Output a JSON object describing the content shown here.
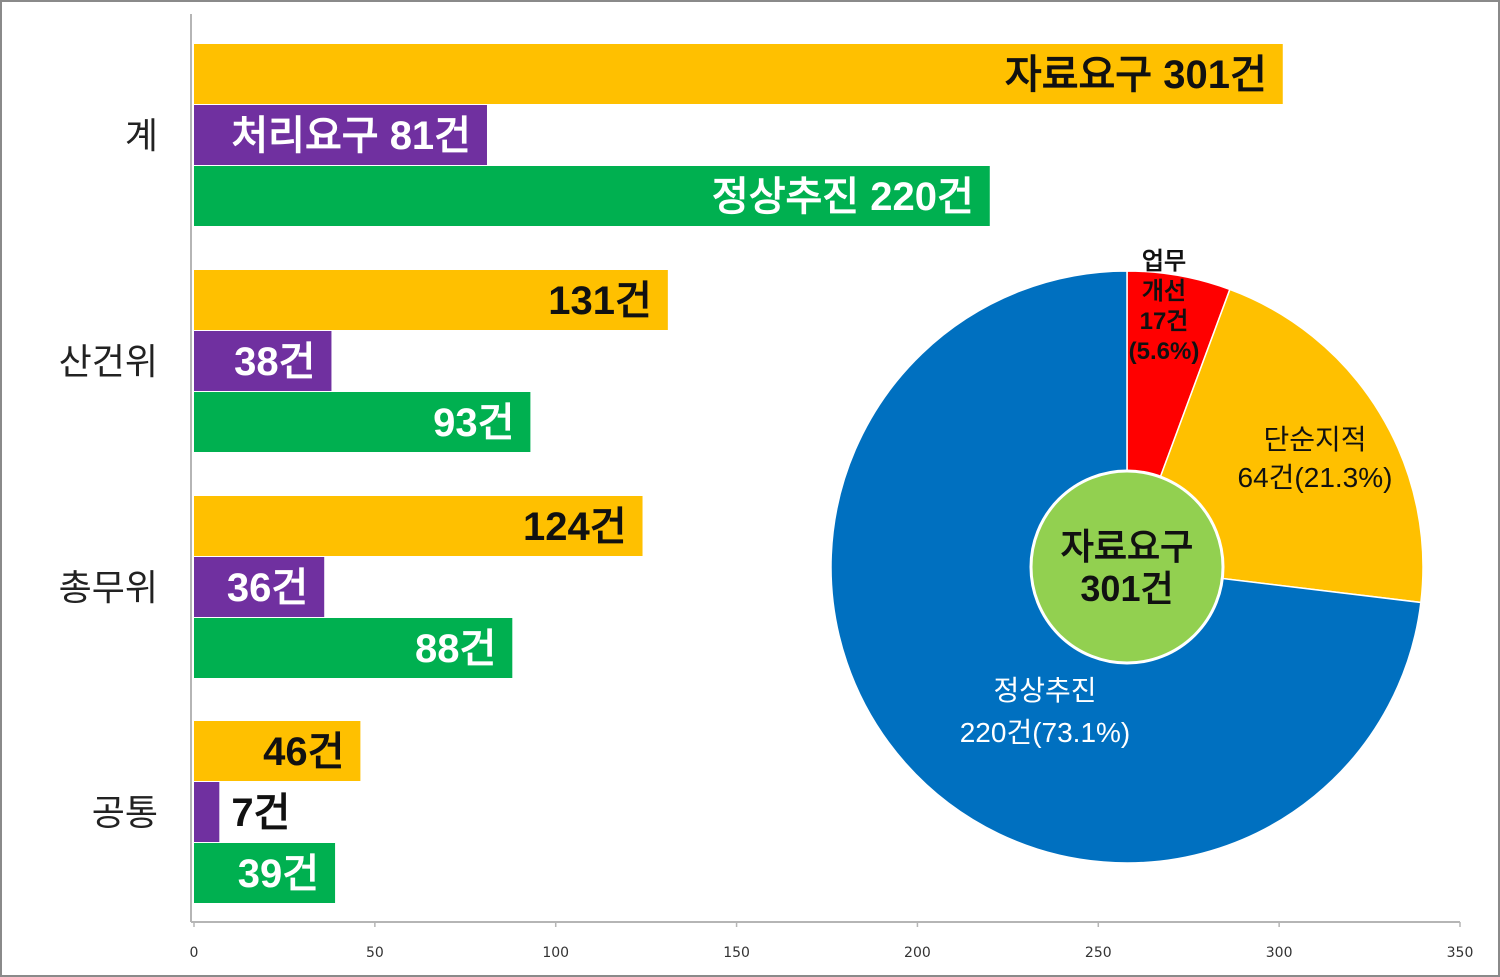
{
  "chart_data": [
    {
      "type": "bar",
      "orientation": "horizontal",
      "categories": [
        "계",
        "산건위",
        "총무위",
        "공통"
      ],
      "series": [
        {
          "key": "total",
          "color": "#FFC000",
          "values": [
            301,
            131,
            124,
            46
          ],
          "labels": [
            "자료요구 301건",
            "131건",
            "124건",
            "46건"
          ]
        },
        {
          "key": "action",
          "color": "#7030A0",
          "values": [
            81,
            38,
            36,
            7
          ],
          "labels": [
            "처리요구 81건",
            "38건",
            "36건",
            "7건"
          ]
        },
        {
          "key": "normal",
          "color": "#00B050",
          "values": [
            220,
            93,
            88,
            39
          ],
          "labels": [
            "정상추진 220건",
            "93건",
            "88건",
            "39건"
          ]
        }
      ],
      "xlim": [
        0,
        350
      ],
      "xticks": [
        "0",
        "50",
        "100",
        "150",
        "200",
        "250",
        "300",
        "350"
      ],
      "grid": false
    },
    {
      "type": "pie",
      "slices": [
        {
          "lines": [
            "업무",
            "개선",
            "17건",
            "(5.6%)"
          ],
          "value": 17,
          "percent": 5.6,
          "color": "#FF0000"
        },
        {
          "lines": [
            "단순지적",
            "64건(21.3%)"
          ],
          "value": 64,
          "percent": 21.3,
          "color": "#FFC000"
        },
        {
          "lines": [
            "정상추진",
            "220건(73.1%)"
          ],
          "value": 220,
          "percent": 73.1,
          "color": "#0070C0"
        }
      ],
      "center_label": [
        "자료요구",
        "301건"
      ],
      "center_color": "#92D050"
    }
  ]
}
